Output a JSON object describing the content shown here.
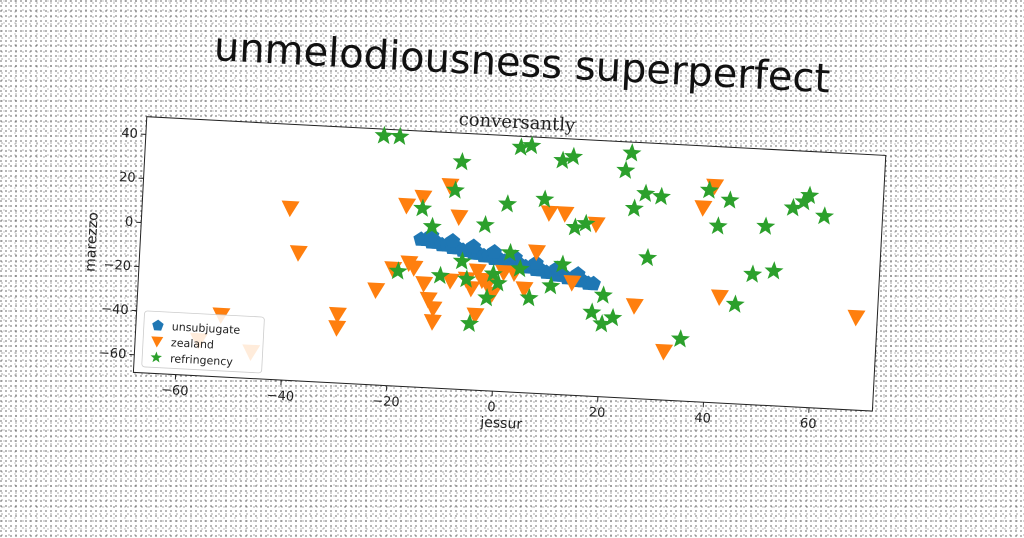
{
  "figure": {
    "suptitle": "unmelodiousness superperfect"
  },
  "chart_data": {
    "type": "scatter",
    "title": "conversantly",
    "xlabel": "jessur",
    "ylabel": "marezzo",
    "xlim": [
      -68,
      72
    ],
    "ylim": [
      -68,
      48
    ],
    "xticks": [
      -60,
      -40,
      -20,
      0,
      20,
      40,
      60
    ],
    "yticks": [
      -60,
      -40,
      -20,
      0,
      20,
      40
    ],
    "grid": false,
    "legend_position": "lower-left",
    "series": [
      {
        "name": "unsubjugate",
        "marker": "pentagon",
        "color": "#1f77b4",
        "x": [
          -15,
          -14,
          -13,
          -12,
          -11,
          -10,
          -9,
          -8,
          -7,
          -6,
          -5,
          -4,
          -3,
          -2,
          -1,
          0,
          1,
          2,
          3,
          4,
          5,
          6,
          7,
          8,
          9,
          10,
          11,
          12,
          13,
          14,
          15,
          16,
          17,
          18,
          -13,
          -9,
          -5,
          -1,
          3,
          7,
          11,
          15
        ],
        "y": [
          -1,
          -1,
          -2,
          -2,
          -3,
          -3,
          -4,
          -4,
          -5,
          -5,
          -6,
          -6,
          -7,
          -7,
          -8,
          -8,
          -9,
          -9,
          -10,
          -10,
          -11,
          -11,
          -12,
          -12,
          -13,
          -13,
          -14,
          -14,
          -15,
          -15,
          -16,
          -16,
          -17,
          -17,
          1,
          -1,
          -3,
          -5,
          -7,
          -9,
          -11,
          -13
        ]
      },
      {
        "name": "zealand",
        "marker": "triangle-down",
        "color": "#ff7f0e",
        "x": [
          -40,
          -38,
          -30,
          -23,
          -20,
          -18,
          -17,
          -16,
          -15,
          -14,
          -13,
          -12,
          -10,
          -9,
          -8,
          -6,
          -5,
          -4,
          -3,
          -2,
          -1,
          1,
          3,
          5,
          7,
          9,
          12,
          14,
          18,
          26,
          32,
          38,
          40,
          42,
          68,
          -52,
          -56,
          -46,
          -30,
          -12,
          -4
        ],
        "y": [
          10,
          -10,
          -37,
          -25,
          -15,
          14,
          -12,
          -14,
          18,
          -21,
          -28,
          -38,
          24,
          -19,
          10,
          -18,
          -22,
          -14,
          -18,
          -20,
          -24,
          -14,
          -14,
          -21,
          -4,
          14,
          14,
          -17,
          10,
          -26,
          -46,
          20,
          30,
          -20,
          -26,
          -40,
          -52,
          -56,
          -43,
          -32,
          -34
        ]
      },
      {
        "name": "refringency",
        "marker": "star",
        "color": "#2ca02c",
        "x": [
          -23,
          -20,
          -19,
          -15,
          -13,
          -11,
          -9,
          -8,
          -7,
          -6,
          -5,
          -3,
          -2,
          0,
          1,
          2,
          3,
          5,
          8,
          11,
          13,
          14,
          16,
          18,
          20,
          22,
          23,
          24,
          25,
          27,
          30,
          35,
          39,
          41,
          43,
          45,
          48,
          50,
          52,
          55,
          57,
          58,
          61,
          6,
          10,
          -1,
          4,
          12,
          20,
          28
        ],
        "y": [
          45,
          45,
          -16,
          13,
          5,
          -17,
          22,
          35,
          -10,
          -18,
          -38,
          7,
          -26,
          -19,
          17,
          -5,
          43,
          44,
          20,
          38,
          40,
          8,
          10,
          -30,
          -35,
          -32,
          35,
          43,
          18,
          25,
          24,
          -40,
          28,
          12,
          24,
          -23,
          -9,
          13,
          -7,
          22,
          25,
          28,
          19,
          -25,
          -19,
          -15,
          -12,
          -9,
          -22,
          -4
        ]
      }
    ]
  }
}
